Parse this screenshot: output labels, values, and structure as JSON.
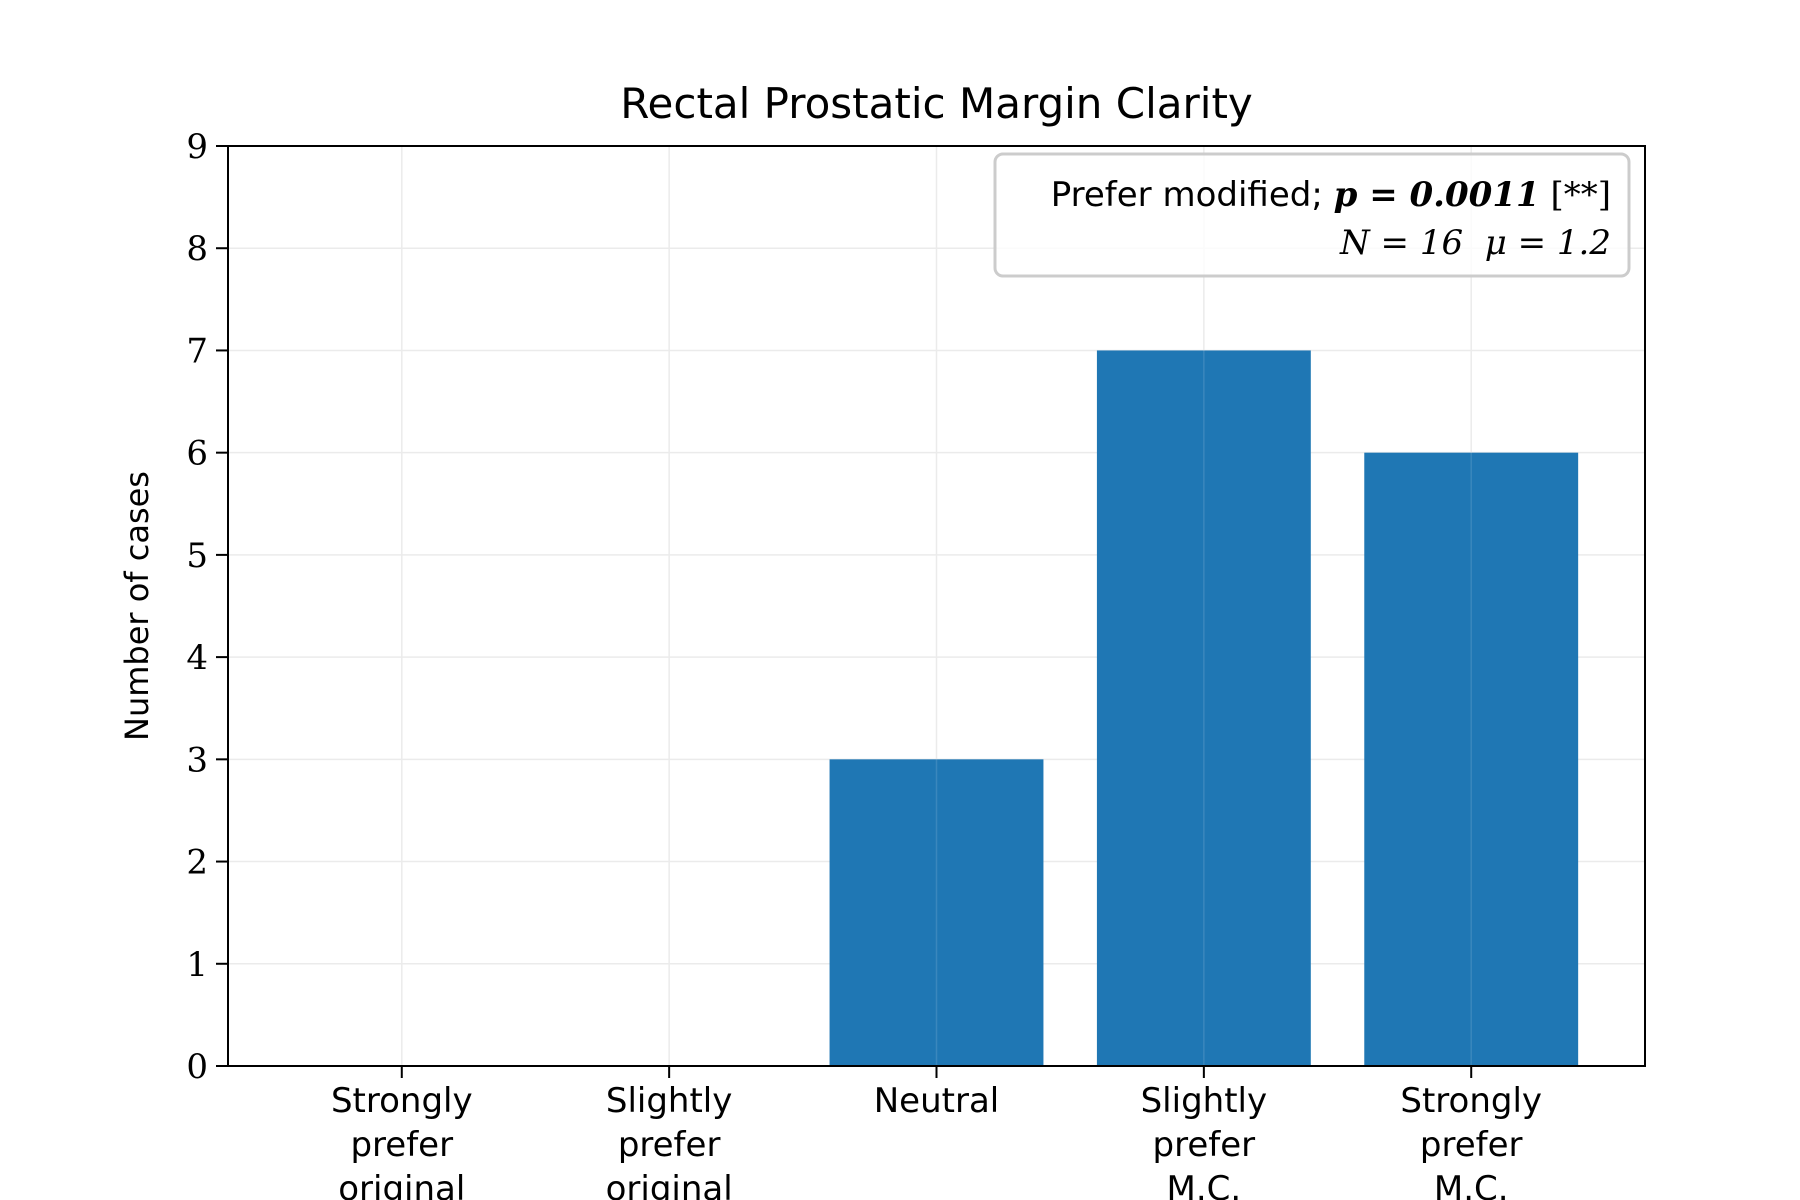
{
  "chart_data": {
    "type": "bar",
    "title": "Rectal Prostatic Margin Clarity",
    "xlabel": "",
    "ylabel": "Number of cases",
    "categories": [
      [
        "Strongly",
        "prefer",
        "original"
      ],
      [
        "Slightly",
        "prefer",
        "original"
      ],
      [
        "Neutral"
      ],
      [
        "Slightly",
        "prefer",
        "M.C."
      ],
      [
        "Strongly",
        "prefer",
        "M.C."
      ]
    ],
    "values": [
      0,
      0,
      3,
      7,
      6
    ],
    "ylim": [
      0,
      9
    ],
    "yticks": [
      0,
      1,
      2,
      3,
      4,
      5,
      6,
      7,
      8,
      9
    ],
    "grid": true,
    "bar_color": "#1f77b4",
    "annotation": {
      "placement": "top-right",
      "line1_prefix": "Prefer modified; ",
      "line1_stat": "p = 0.0011",
      "line1_suffix": " [**]",
      "line2": "N = 16  μ = 1.2"
    }
  }
}
